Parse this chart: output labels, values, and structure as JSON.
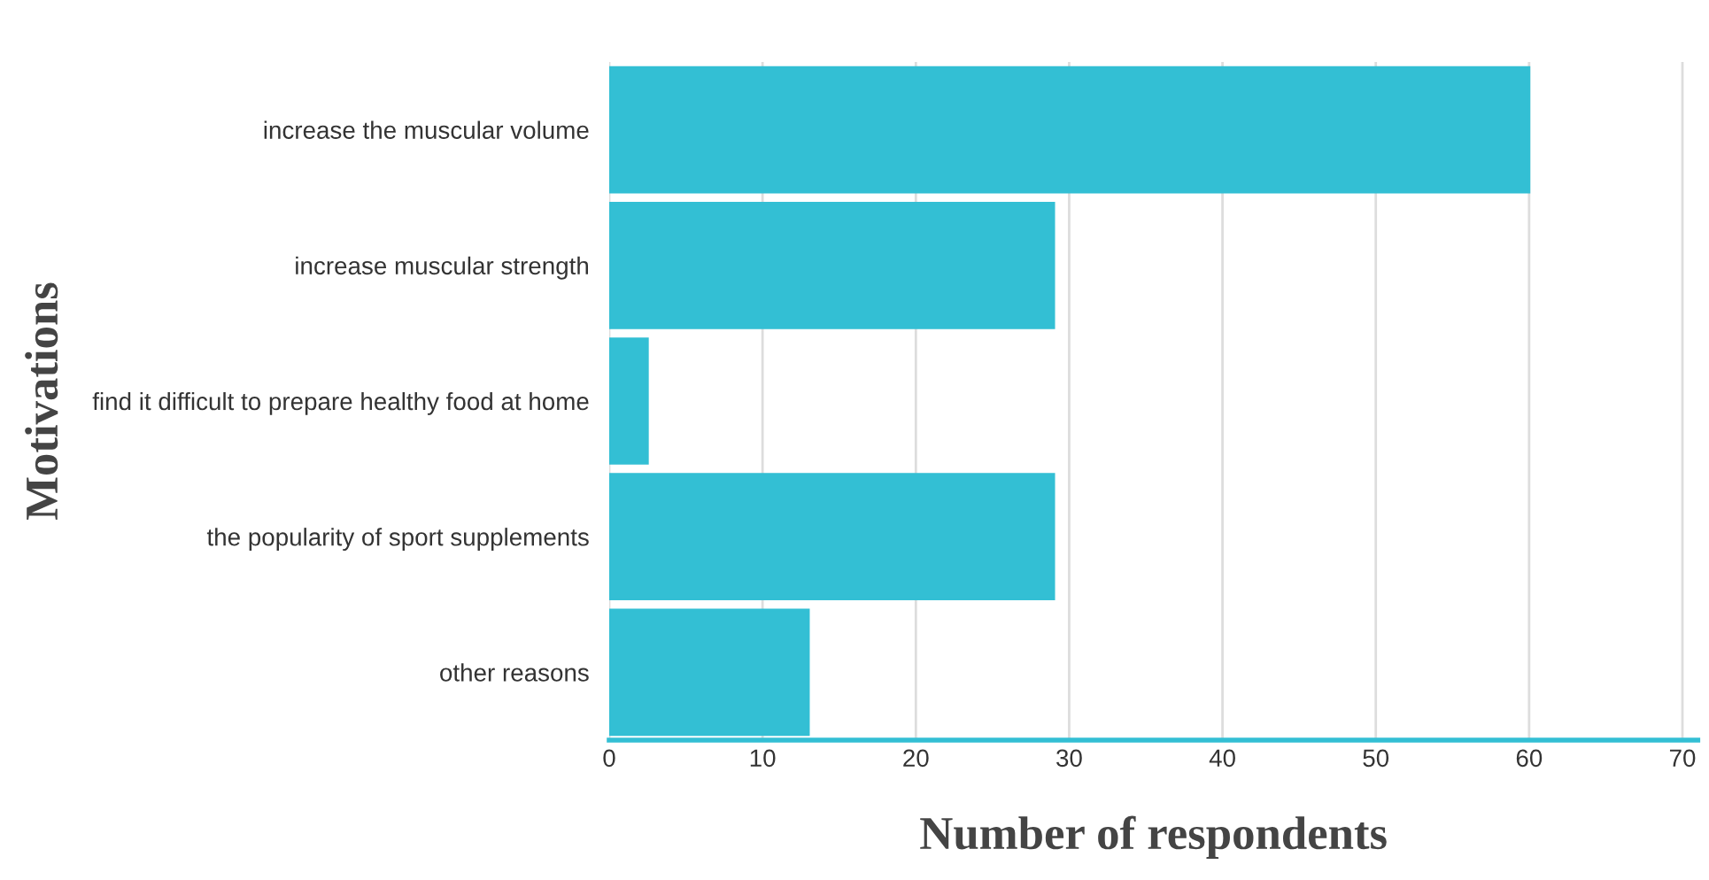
{
  "chart_data": {
    "type": "bar",
    "orientation": "horizontal",
    "categories": [
      "increase the muscular volume",
      "increase muscular strength",
      "find it difficult to prepare healthy food at home",
      "the popularity of sport supplements",
      "other reasons"
    ],
    "values": [
      60,
      29,
      2.5,
      29,
      13
    ],
    "color": "#33bfd4",
    "xlim": [
      0,
      71
    ],
    "xticks": [
      0,
      10,
      20,
      30,
      40,
      50,
      60,
      70
    ],
    "grid": "x",
    "xlabel": "Number of respondents",
    "ylabel": "Motivations"
  }
}
